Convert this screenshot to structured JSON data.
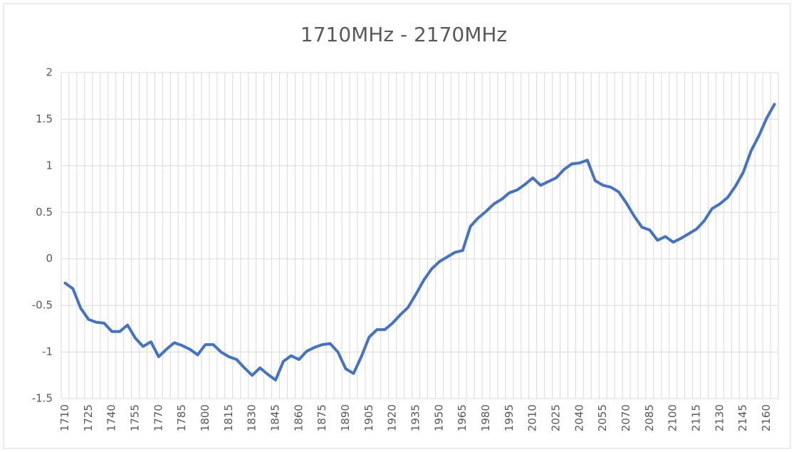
{
  "chart_data": {
    "type": "line",
    "title": "1710MHz - 2170MHz",
    "categories": [
      "1710",
      null,
      null,
      "1725",
      null,
      null,
      "1740",
      null,
      null,
      "1755",
      null,
      null,
      "1770",
      null,
      null,
      "1785",
      null,
      null,
      "1800",
      null,
      null,
      "1815",
      null,
      null,
      "1830",
      null,
      null,
      "1845",
      null,
      null,
      "1860",
      null,
      null,
      "1875",
      null,
      null,
      "1890",
      null,
      null,
      "1905",
      null,
      null,
      "1920",
      null,
      null,
      "1935",
      null,
      null,
      "1950",
      null,
      null,
      "1965",
      null,
      null,
      "1980",
      null,
      null,
      "1995",
      null,
      null,
      "2010",
      null,
      null,
      "2025",
      null,
      null,
      "2040",
      null,
      null,
      "2055",
      null,
      null,
      "2070",
      null,
      null,
      "2085",
      null,
      null,
      "2100",
      null,
      null,
      "2115",
      null,
      null,
      "2130",
      null,
      null,
      "2145",
      null,
      null,
      "2160",
      null
    ],
    "series": [
      {
        "color": "#4472c4",
        "values": [
          -0.26,
          -0.32,
          -0.53,
          -0.65,
          -0.68,
          -0.69,
          -0.78,
          -0.78,
          -0.71,
          -0.85,
          -0.94,
          -0.89,
          -1.05,
          -0.97,
          -0.9,
          -0.93,
          -0.97,
          -1.03,
          -0.92,
          -0.92,
          -1.0,
          -1.05,
          -1.08,
          -1.17,
          -1.25,
          -1.17,
          -1.24,
          -1.3,
          -1.1,
          -1.04,
          -1.08,
          -0.99,
          -0.95,
          -0.92,
          -0.91,
          -1.0,
          -1.18,
          -1.23,
          -1.05,
          -0.84,
          -0.76,
          -0.76,
          -0.69,
          -0.6,
          -0.52,
          -0.38,
          -0.23,
          -0.11,
          -0.03,
          0.02,
          0.07,
          0.09,
          0.35,
          0.44,
          0.51,
          0.59,
          0.64,
          0.71,
          0.74,
          0.8,
          0.87,
          0.79,
          0.83,
          0.87,
          0.96,
          1.02,
          1.03,
          1.06,
          0.84,
          0.79,
          0.77,
          0.72,
          0.6,
          0.46,
          0.34,
          0.31,
          0.2,
          0.24,
          0.18,
          0.22,
          0.27,
          0.32,
          0.41,
          0.54,
          0.59,
          0.66,
          0.78,
          0.93,
          1.16,
          1.32,
          1.51,
          1.66
        ]
      }
    ],
    "ylim": [
      -1.5,
      2
    ],
    "yticks": [
      -1.5,
      -1,
      -0.5,
      0,
      0.5,
      1,
      1.5,
      2
    ],
    "grid": true
  }
}
